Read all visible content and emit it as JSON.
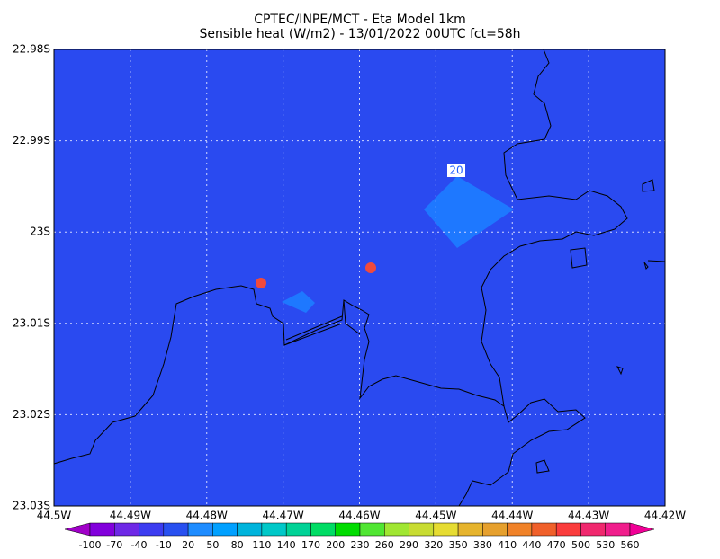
{
  "header": {
    "title": "CPTEC/INPE/MCT -  Eta Model 1km",
    "subtitle": "Sensible heat (W/m2) - 13/01/2022 00UTC fct=58h"
  },
  "map": {
    "xlim": [
      -44.5,
      -44.42
    ],
    "ylim": [
      -23.03,
      -22.98
    ],
    "xticks": [
      {
        "value": -44.5,
        "label": "44.5W"
      },
      {
        "value": -44.49,
        "label": "44.49W"
      },
      {
        "value": -44.48,
        "label": "44.48W"
      },
      {
        "value": -44.47,
        "label": "44.47W"
      },
      {
        "value": -44.46,
        "label": "44.46W"
      },
      {
        "value": -44.45,
        "label": "44.45W"
      },
      {
        "value": -44.44,
        "label": "44.44W"
      },
      {
        "value": -44.43,
        "label": "44.43W"
      },
      {
        "value": -44.42,
        "label": "44.42W"
      }
    ],
    "yticks": [
      {
        "value": -22.98,
        "label": "22.98S"
      },
      {
        "value": -22.99,
        "label": "22.99S"
      },
      {
        "value": -23,
        "label": "23S"
      },
      {
        "value": -23.01,
        "label": "23.01S"
      },
      {
        "value": -23.02,
        "label": "23.02S"
      },
      {
        "value": -23.03,
        "label": "23.03S"
      }
    ],
    "contour_label": "20"
  },
  "colorbar": {
    "levels": [
      -100,
      -70,
      -40,
      -10,
      20,
      50,
      80,
      110,
      140,
      170,
      200,
      230,
      260,
      290,
      320,
      350,
      380,
      410,
      440,
      470,
      500,
      530,
      560
    ],
    "colors": [
      "#a000c8",
      "#8200dc",
      "#6e28e6",
      "#3c3cf0",
      "#2850f0",
      "#1e8cff",
      "#00a0ff",
      "#00b4dc",
      "#00c8c8",
      "#00d296",
      "#00dc64",
      "#00dc00",
      "#50e632",
      "#a0e632",
      "#c8dc32",
      "#e6dc32",
      "#e6b42d",
      "#e6a02d",
      "#f08228",
      "#f0602a",
      "#fa3c3c",
      "#f0286e",
      "#f01e8c",
      "#f00096"
    ]
  }
}
